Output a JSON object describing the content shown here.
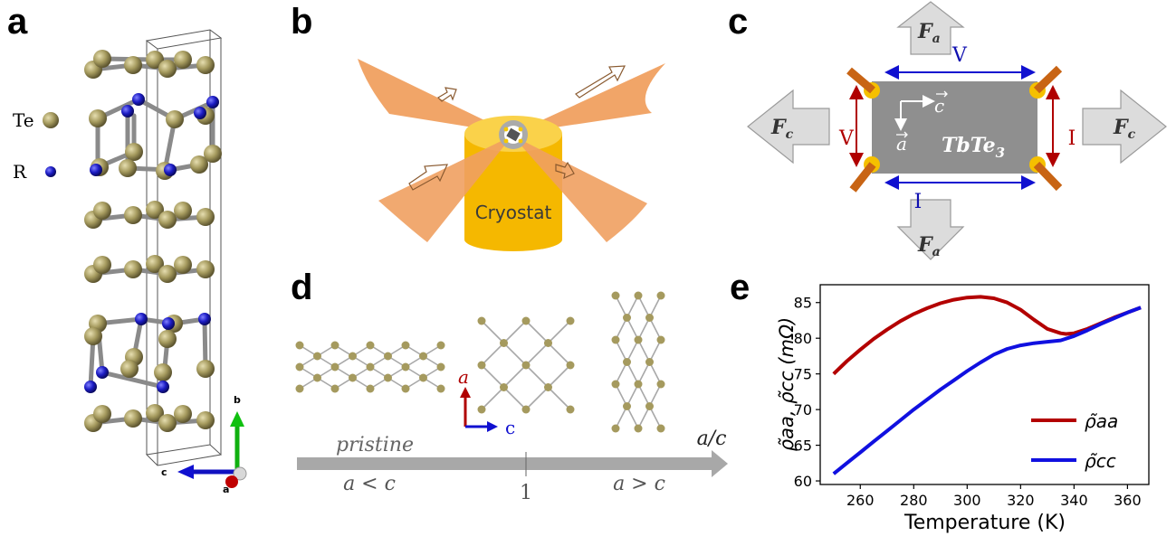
{
  "panel_labels": {
    "a": "a",
    "b": "b",
    "c": "c",
    "d": "d",
    "e": "e"
  },
  "panel_a": {
    "legend": [
      {
        "label": "Te",
        "color": "#a59a5e"
      },
      {
        "label": "R",
        "color": "#1c1cc4"
      }
    ],
    "axes": {
      "b": "b",
      "c": "c",
      "a": "a"
    }
  },
  "panel_b": {
    "cryostat_label": "Cryostat",
    "beam_color": "#f0a060",
    "cryostat_color": "#f5b800"
  },
  "panel_c": {
    "force_a": "F",
    "force_a_sub": "a",
    "force_c": "F",
    "force_c_sub": "c",
    "V_top": "V",
    "V_left": "V",
    "I_right": "I",
    "I_bottom": "I",
    "vec_c": "c",
    "vec_a": "a",
    "sample_main": "TbTe",
    "sample_sub": "3"
  },
  "panel_d": {
    "axis_a": "a",
    "axis_c": "c",
    "arrow_label": "a/c",
    "pristine": "pristine",
    "left_cond": "a < c",
    "tick_label": "1",
    "right_cond": "a > c"
  },
  "chart_data": {
    "type": "line",
    "xlabel": "Temperature (K)",
    "ylabel": "ρ̃aa, ρ̃cc (mΩ)",
    "xlim": [
      245,
      368
    ],
    "ylim": [
      59.5,
      87.5
    ],
    "xticks": [
      260,
      280,
      300,
      320,
      340,
      360
    ],
    "yticks": [
      60,
      65,
      70,
      75,
      80,
      85
    ],
    "legend_position": "lower-right",
    "series": [
      {
        "name": "ρ̃aa",
        "color": "#b30000",
        "x": [
          250,
          255,
          260,
          265,
          270,
          275,
          280,
          285,
          290,
          295,
          300,
          305,
          310,
          315,
          320,
          325,
          330,
          335,
          337,
          340,
          345,
          350,
          355,
          360,
          365
        ],
        "y": [
          75.0,
          76.8,
          78.4,
          79.9,
          81.2,
          82.4,
          83.4,
          84.2,
          84.9,
          85.4,
          85.7,
          85.8,
          85.6,
          85.0,
          84.0,
          82.6,
          81.3,
          80.7,
          80.6,
          80.7,
          81.3,
          82.1,
          82.9,
          83.6,
          84.3
        ]
      },
      {
        "name": "ρ̃cc",
        "color": "#1010e0",
        "x": [
          250,
          255,
          260,
          265,
          270,
          275,
          280,
          285,
          290,
          295,
          300,
          305,
          310,
          315,
          320,
          325,
          330,
          335,
          340,
          345,
          350,
          355,
          360,
          365
        ],
        "y": [
          61.0,
          62.5,
          64.0,
          65.5,
          67.0,
          68.5,
          70.0,
          71.4,
          72.8,
          74.1,
          75.4,
          76.6,
          77.7,
          78.5,
          79.0,
          79.3,
          79.5,
          79.7,
          80.3,
          81.1,
          82.0,
          82.8,
          83.6,
          84.3
        ]
      }
    ]
  }
}
